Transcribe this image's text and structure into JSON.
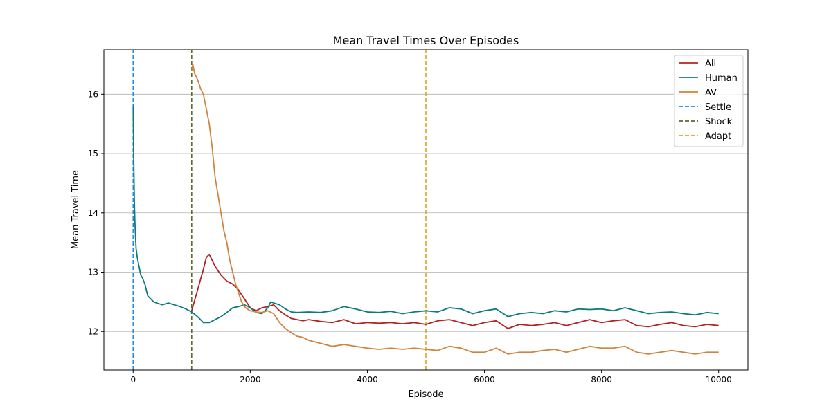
{
  "chart_data": {
    "type": "line",
    "title": "Mean Travel Times Over Episodes",
    "xlabel": "Episode",
    "ylabel": "Mean Travel Time",
    "xlim": [
      -500,
      10500
    ],
    "ylim": [
      11.35,
      16.75
    ],
    "xticks": [
      0,
      2000,
      4000,
      6000,
      8000,
      10000
    ],
    "xtick_labels": [
      "0",
      "2000",
      "4000",
      "6000",
      "8000",
      "10000"
    ],
    "yticks": [
      12,
      13,
      14,
      15,
      16
    ],
    "ytick_labels": [
      "12",
      "13",
      "14",
      "15",
      "16"
    ],
    "grid": "horizontal",
    "legend_position": "top-right",
    "series": [
      {
        "name": "All",
        "color": "#b22222",
        "style": "solid",
        "x": [
          1000,
          1100,
          1200,
          1250,
          1300,
          1350,
          1400,
          1500,
          1600,
          1700,
          1800,
          1900,
          2000,
          2100,
          2200,
          2300,
          2400,
          2500,
          2600,
          2700,
          2800,
          2900,
          3000,
          3200,
          3400,
          3600,
          3800,
          4000,
          4200,
          4400,
          4600,
          4800,
          5000,
          5200,
          5400,
          5600,
          5800,
          6000,
          6200,
          6400,
          6600,
          6800,
          7000,
          7200,
          7400,
          7600,
          7800,
          8000,
          8200,
          8400,
          8600,
          8800,
          9000,
          9200,
          9400,
          9600,
          9800,
          10000
        ],
        "y": [
          12.35,
          12.7,
          13.05,
          13.25,
          13.3,
          13.2,
          13.1,
          12.95,
          12.85,
          12.8,
          12.7,
          12.55,
          12.4,
          12.35,
          12.4,
          12.42,
          12.45,
          12.35,
          12.28,
          12.22,
          12.2,
          12.18,
          12.2,
          12.17,
          12.15,
          12.2,
          12.13,
          12.15,
          12.14,
          12.15,
          12.13,
          12.15,
          12.12,
          12.18,
          12.2,
          12.15,
          12.1,
          12.15,
          12.18,
          12.05,
          12.12,
          12.1,
          12.12,
          12.15,
          12.1,
          12.15,
          12.2,
          12.15,
          12.18,
          12.2,
          12.1,
          12.08,
          12.12,
          12.15,
          12.1,
          12.08,
          12.12,
          12.1
        ]
      },
      {
        "name": "Human",
        "color": "#0b7b7b",
        "style": "solid",
        "x": [
          0,
          10,
          20,
          30,
          40,
          50,
          70,
          100,
          130,
          160,
          200,
          250,
          300,
          350,
          400,
          500,
          600,
          700,
          800,
          900,
          1000,
          1100,
          1200,
          1300,
          1400,
          1500,
          1600,
          1700,
          1800,
          1900,
          2000,
          2100,
          2200,
          2300,
          2350,
          2400,
          2500,
          2600,
          2700,
          2800,
          3000,
          3200,
          3400,
          3600,
          3800,
          4000,
          4200,
          4400,
          4600,
          4800,
          5000,
          5200,
          5400,
          5600,
          5800,
          6000,
          6200,
          6400,
          6600,
          6800,
          7000,
          7200,
          7400,
          7600,
          7800,
          8000,
          8200,
          8400,
          8600,
          8800,
          9000,
          9200,
          9400,
          9600,
          9800,
          10000
        ],
        "y": [
          15.8,
          14.9,
          14.2,
          13.85,
          13.6,
          13.4,
          13.25,
          13.1,
          12.95,
          12.9,
          12.8,
          12.6,
          12.55,
          12.5,
          12.48,
          12.45,
          12.48,
          12.45,
          12.42,
          12.38,
          12.33,
          12.25,
          12.15,
          12.15,
          12.2,
          12.25,
          12.32,
          12.4,
          12.42,
          12.45,
          12.4,
          12.32,
          12.3,
          12.4,
          12.5,
          12.48,
          12.45,
          12.38,
          12.33,
          12.32,
          12.33,
          12.32,
          12.35,
          12.42,
          12.38,
          12.33,
          12.32,
          12.34,
          12.3,
          12.33,
          12.35,
          12.33,
          12.4,
          12.38,
          12.3,
          12.35,
          12.38,
          12.25,
          12.3,
          12.32,
          12.3,
          12.35,
          12.33,
          12.38,
          12.37,
          12.38,
          12.35,
          12.4,
          12.35,
          12.3,
          12.32,
          12.33,
          12.3,
          12.28,
          12.32,
          12.3
        ]
      },
      {
        "name": "AV",
        "color": "#cd8540",
        "style": "solid",
        "x": [
          1000,
          1020,
          1050,
          1100,
          1150,
          1200,
          1250,
          1300,
          1350,
          1400,
          1450,
          1500,
          1550,
          1600,
          1650,
          1700,
          1750,
          1800,
          1850,
          1900,
          1950,
          2000,
          2100,
          2200,
          2300,
          2400,
          2500,
          2600,
          2700,
          2800,
          2900,
          3000,
          3200,
          3400,
          3600,
          3800,
          4000,
          4200,
          4400,
          4600,
          4800,
          5000,
          5200,
          5400,
          5600,
          5800,
          6000,
          6200,
          6400,
          6600,
          6800,
          7000,
          7200,
          7400,
          7600,
          7800,
          8000,
          8200,
          8400,
          8600,
          8800,
          9000,
          9200,
          9400,
          9600,
          9800,
          10000
        ],
        "y": [
          16.4,
          16.5,
          16.35,
          16.25,
          16.1,
          16.0,
          15.75,
          15.5,
          15.1,
          14.6,
          14.3,
          14.0,
          13.7,
          13.5,
          13.2,
          13.0,
          12.8,
          12.65,
          12.5,
          12.42,
          12.38,
          12.35,
          12.33,
          12.32,
          12.35,
          12.3,
          12.15,
          12.05,
          11.98,
          11.92,
          11.9,
          11.85,
          11.8,
          11.75,
          11.78,
          11.75,
          11.72,
          11.7,
          11.72,
          11.7,
          11.72,
          11.7,
          11.68,
          11.75,
          11.72,
          11.65,
          11.65,
          11.72,
          11.62,
          11.65,
          11.65,
          11.68,
          11.7,
          11.65,
          11.7,
          11.75,
          11.72,
          11.72,
          11.75,
          11.65,
          11.62,
          11.65,
          11.68,
          11.65,
          11.62,
          11.65,
          11.65
        ]
      },
      {
        "name": "Settle",
        "color": "#1e8ce6",
        "style": "dashed-vertical",
        "x": [
          0,
          0
        ],
        "y": [
          11.35,
          16.75
        ]
      },
      {
        "name": "Shock",
        "color": "#556b2f",
        "style": "dashed-vertical",
        "x": [
          1000,
          1000
        ],
        "y": [
          11.35,
          16.75
        ]
      },
      {
        "name": "Adapt",
        "color": "#daa520",
        "style": "dashed-vertical",
        "x": [
          5000,
          5000
        ],
        "y": [
          11.35,
          16.75
        ]
      }
    ]
  }
}
